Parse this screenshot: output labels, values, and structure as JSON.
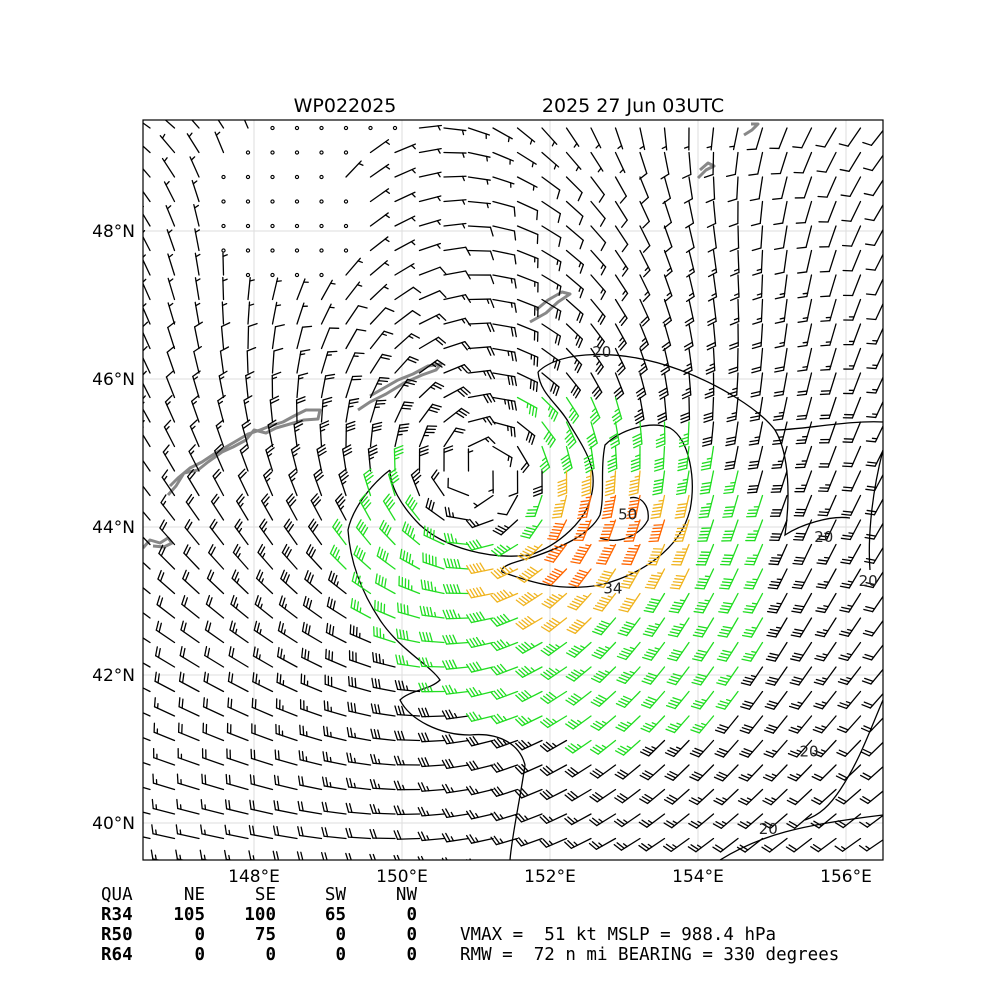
{
  "title": {
    "storm_id": "WP022025",
    "datetime": "2025 27 Jun 03UTC"
  },
  "axes": {
    "lon_range": [
      146.5,
      156.5
    ],
    "lat_range": [
      39.5,
      49.5
    ],
    "lon_ticks": [
      {
        "value": 148,
        "label": "148°E"
      },
      {
        "value": 150,
        "label": "150°E"
      },
      {
        "value": 152,
        "label": "152°E"
      },
      {
        "value": 154,
        "label": "154°E"
      },
      {
        "value": 156,
        "label": "156°E"
      }
    ],
    "lat_ticks": [
      {
        "value": 40,
        "label": "40°N"
      },
      {
        "value": 42,
        "label": "42°N"
      },
      {
        "value": 44,
        "label": "44°N"
      },
      {
        "value": 46,
        "label": "46°N"
      },
      {
        "value": 48,
        "label": "48°N"
      }
    ],
    "grid": true
  },
  "storm": {
    "center": {
      "lon": 151.2,
      "lat": 44.5
    },
    "rmw_nmi": 72,
    "vmax_kt": 51,
    "bearing_deg": 330
  },
  "contour_labels": [
    {
      "text": "20",
      "lon": 152.7,
      "lat": 46.3
    },
    {
      "text": "50",
      "lon": 153.05,
      "lat": 44.1
    },
    {
      "text": "34",
      "lon": 152.85,
      "lat": 43.1
    },
    {
      "text": "20",
      "lon": 155.7,
      "lat": 43.8
    },
    {
      "text": "20",
      "lon": 156.3,
      "lat": 43.2
    },
    {
      "text": "20",
      "lon": 155.5,
      "lat": 40.9
    },
    {
      "text": "20",
      "lon": 154.95,
      "lat": 39.85
    }
  ],
  "wind_radii": {
    "header": [
      "QUA",
      "NE",
      "SE",
      "SW",
      "NW"
    ],
    "rows": [
      {
        "label": "R34",
        "values": [
          "105",
          "100",
          "65",
          "0"
        ]
      },
      {
        "label": "R50",
        "values": [
          "0",
          "75",
          "0",
          "0"
        ]
      },
      {
        "label": "R64",
        "values": [
          "0",
          "0",
          "0",
          "0"
        ]
      }
    ]
  },
  "summary": {
    "line1": "VMAX =  51 kt MSLP = 988.4 hPa",
    "line2": "RMW =  72 n mi BEARING = 330 degrees"
  },
  "colors": {
    "calm": "#000000",
    "below_34kt": "#000000",
    "gale_34kt": "#22dd22",
    "storm_50kt": "#f0b420",
    "strong_60kt": "#ff6600",
    "coast": "#888888"
  }
}
